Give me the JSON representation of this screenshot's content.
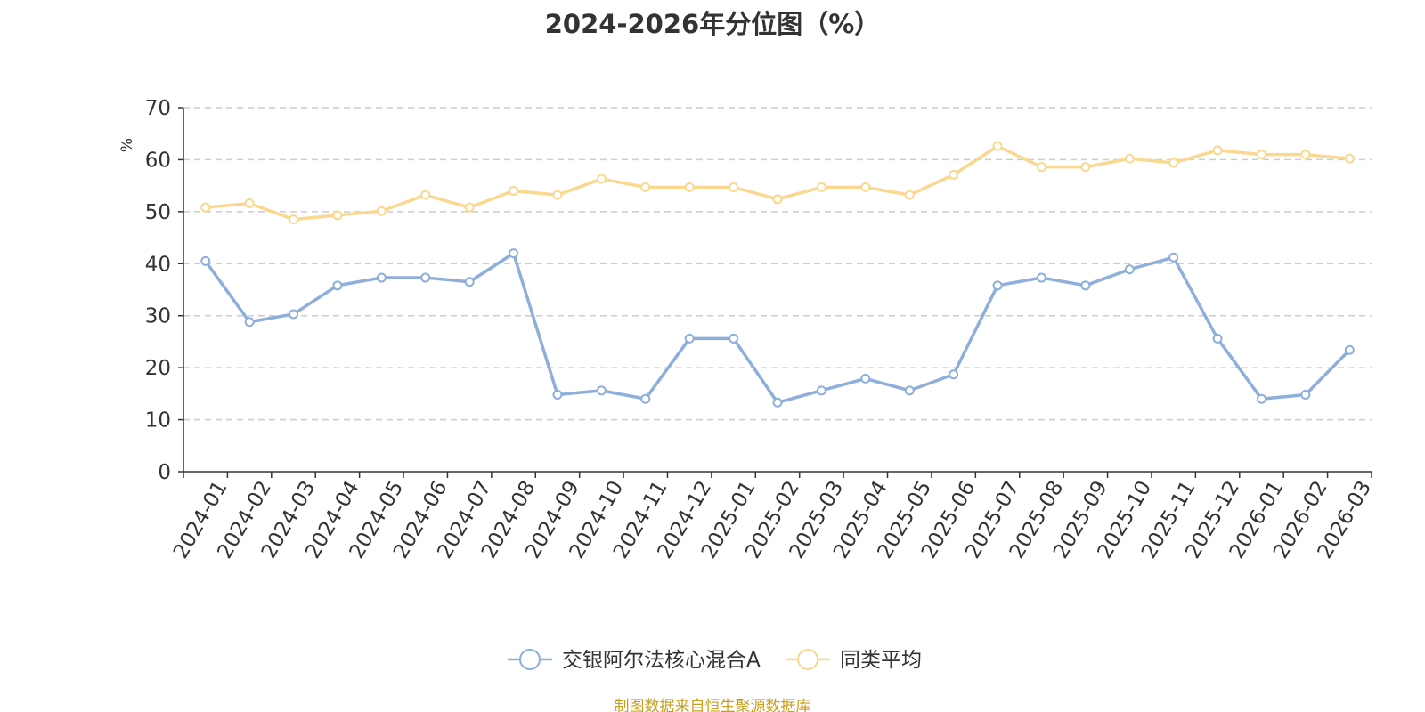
{
  "title": "2024-2026年分位图（%）",
  "source": "制图数据来自恒生聚源数据库",
  "colors": {
    "fund": "#8eaedb",
    "average": "#fbd88f",
    "ylabel": "#ff0000",
    "source": "#c8a020",
    "grid": "#cccccc",
    "axis": "#333333"
  },
  "chart_data": {
    "type": "line",
    "title": "2024-2026年分位图（%）",
    "ylabel": "%",
    "xlabel": "",
    "ylim": [
      0,
      70
    ],
    "yticks": [
      0,
      10,
      20,
      30,
      40,
      50,
      60,
      70
    ],
    "grid": "horizontal-dashed",
    "legend_position": "bottom-center",
    "categories": [
      "2024-01",
      "2024-02",
      "2024-03",
      "2024-04",
      "2024-05",
      "2024-06",
      "2024-07",
      "2024-08",
      "2024-09",
      "2024-10",
      "2024-11",
      "2024-12",
      "2025-01",
      "2025-02",
      "2025-03",
      "2025-04",
      "2025-05",
      "2025-06",
      "2025-07",
      "2025-08",
      "2025-09",
      "2025-10",
      "2025-11",
      "2025-12",
      "2026-01",
      "2026-02",
      "2026-03"
    ],
    "series": [
      {
        "name": "交银阿尔法核心混合A",
        "color": "#8eaedb",
        "values": [
          40.5,
          28.8,
          30.3,
          35.8,
          37.3,
          37.3,
          36.5,
          42.0,
          14.8,
          15.6,
          14.0,
          25.6,
          25.6,
          13.3,
          15.6,
          17.9,
          15.6,
          18.7,
          35.8,
          37.3,
          35.8,
          38.9,
          41.2,
          25.6,
          14.0,
          14.8,
          23.4
        ]
      },
      {
        "name": "同类平均",
        "color": "#fbd88f",
        "values": [
          50.8,
          51.6,
          48.5,
          49.3,
          50.1,
          53.2,
          50.8,
          54.0,
          53.2,
          56.3,
          54.7,
          54.7,
          54.7,
          52.4,
          54.7,
          54.7,
          53.2,
          57.1,
          62.6,
          58.6,
          58.6,
          60.2,
          59.4,
          61.8,
          61.0,
          61.0,
          60.2
        ]
      }
    ]
  }
}
